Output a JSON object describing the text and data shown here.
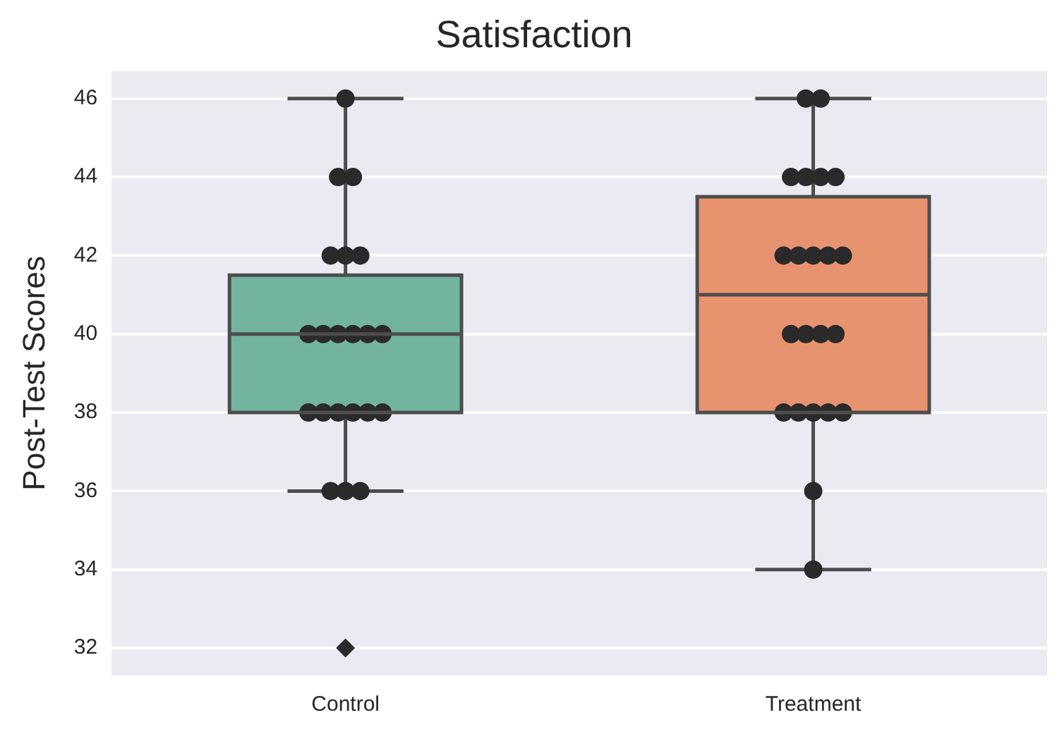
{
  "chart_data": {
    "type": "box",
    "title": "Satisfaction",
    "ylabel": "Post-Test Scores",
    "categories": [
      "Control",
      "Treatment"
    ],
    "series": [
      {
        "colors": [
          "#72b49e",
          "#e8936f"
        ],
        "boxes": [
          {
            "low": 36,
            "q1": 38,
            "median": 40,
            "q3": 41.5,
            "high": 46,
            "outliers": [
              32
            ]
          },
          {
            "low": 34,
            "q1": 38,
            "median": 41,
            "q3": 43.5,
            "high": 46
          }
        ]
      },
      {
        "type": "scatter",
        "color": "#2a2a2a",
        "x": [
          "Control",
          "Control",
          "Control",
          "Control",
          "Control",
          "Control",
          "Control",
          "Control",
          "Control",
          "Control",
          "Control",
          "Control",
          "Control",
          "Control",
          "Control",
          "Control",
          "Control",
          "Control",
          "Control",
          "Control",
          "Control",
          "Treatment",
          "Treatment",
          "Treatment",
          "Treatment",
          "Treatment",
          "Treatment",
          "Treatment",
          "Treatment",
          "Treatment",
          "Treatment",
          "Treatment",
          "Treatment",
          "Treatment",
          "Treatment",
          "Treatment",
          "Treatment",
          "Treatment",
          "Treatment",
          "Treatment",
          "Treatment",
          "Treatment",
          "Treatment"
        ],
        "values": [
          46,
          44,
          44,
          42,
          42,
          42,
          40,
          40,
          40,
          40,
          40,
          40,
          38,
          38,
          38,
          38,
          38,
          38,
          36,
          36,
          36,
          46,
          46,
          44,
          44,
          44,
          44,
          42,
          42,
          42,
          42,
          42,
          40,
          40,
          40,
          40,
          38,
          38,
          38,
          38,
          38,
          36,
          34
        ]
      }
    ],
    "ylim": [
      31.3,
      46.7
    ],
    "yticks": [
      32,
      34,
      36,
      38,
      40,
      42,
      44,
      46
    ],
    "grid": "y",
    "legend": false,
    "marker": "circle"
  }
}
